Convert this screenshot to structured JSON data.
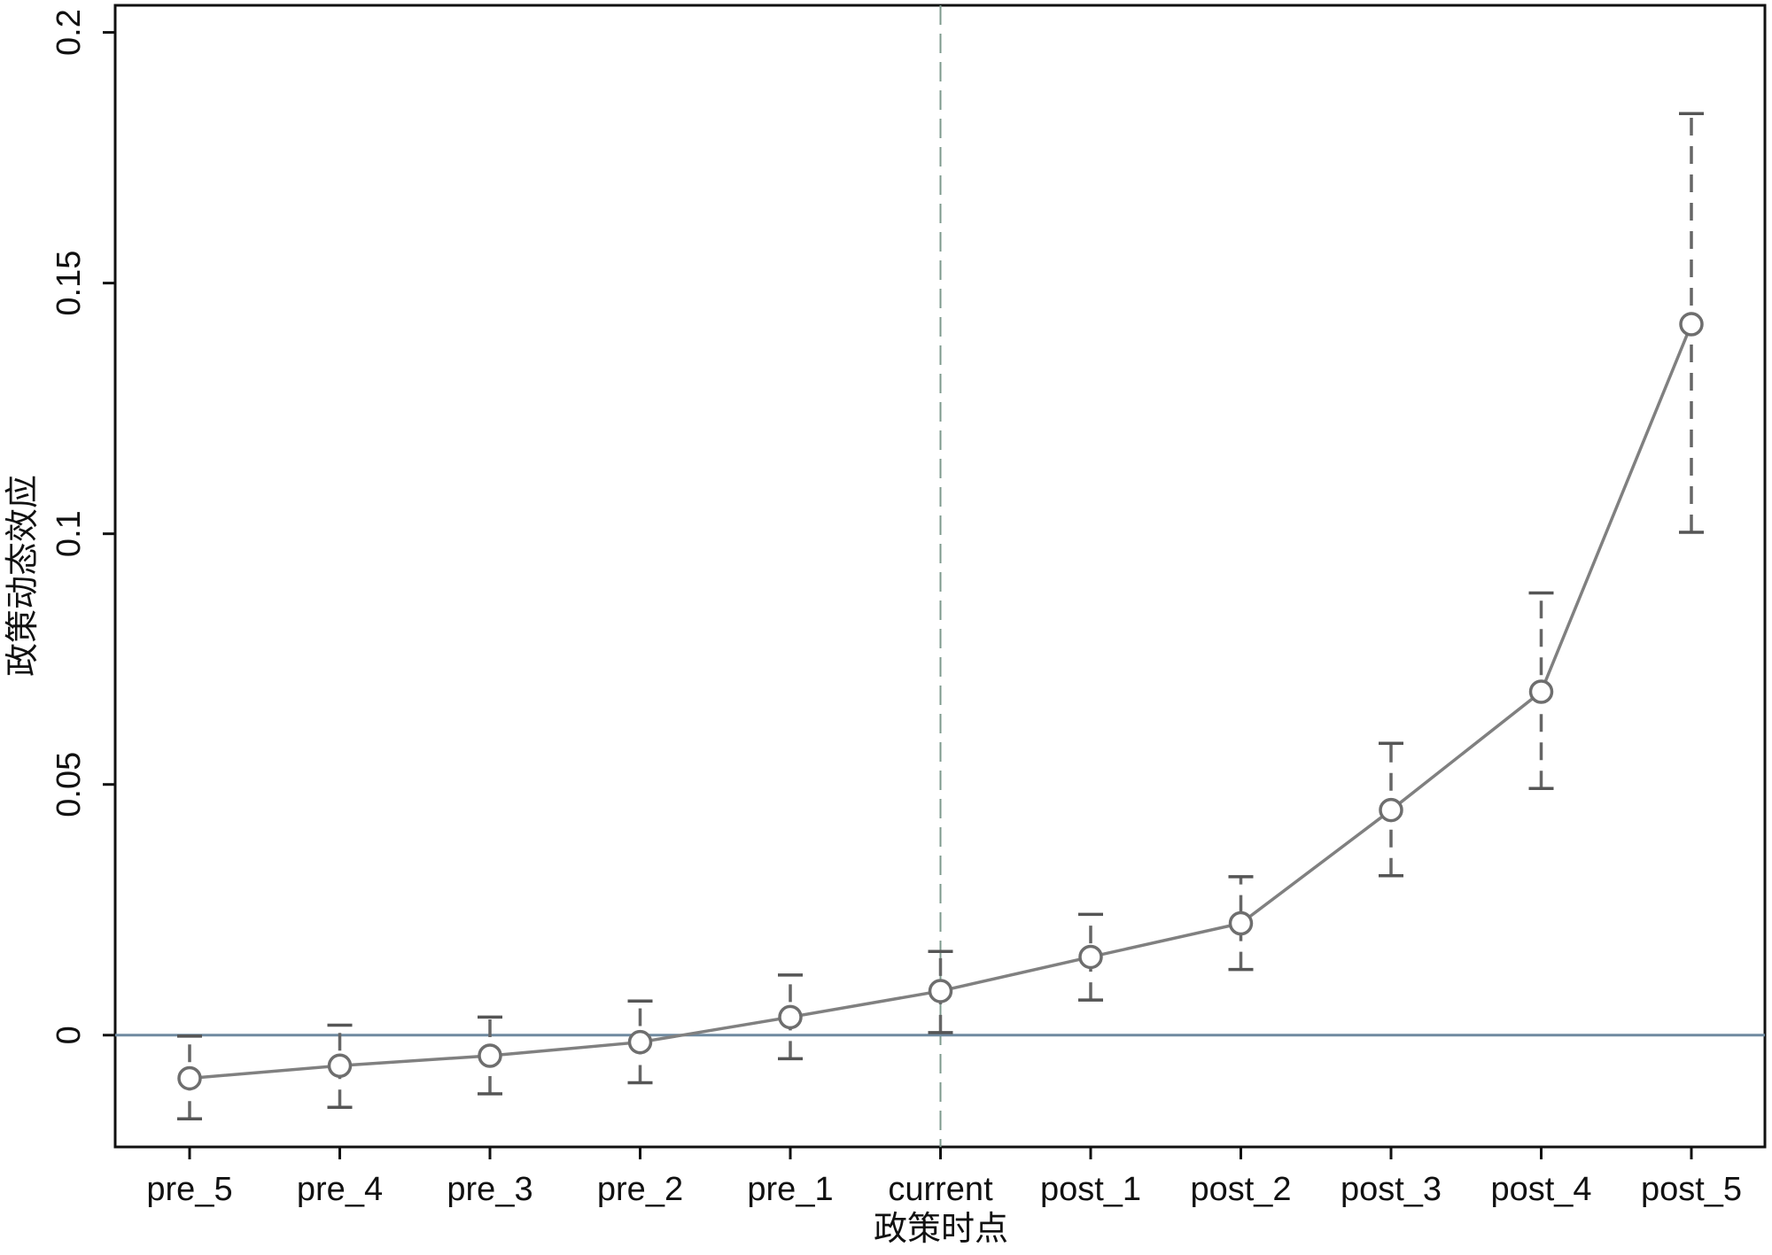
{
  "chart_data": {
    "type": "line",
    "xlabel": "政策时点",
    "ylabel": "政策动态效应",
    "categories": [
      "pre_5",
      "pre_4",
      "pre_3",
      "pre_2",
      "pre_1",
      "current",
      "post_1",
      "post_2",
      "post_3",
      "post_4",
      "post_5"
    ],
    "series": [
      {
        "color": "#808080",
        "values": [
          -0.0086,
          -0.0061,
          -0.0041,
          -0.0014,
          0.0036,
          0.0088,
          0.0156,
          0.0223,
          0.0449,
          0.0685,
          0.1418
        ],
        "ci_lower": [
          -0.0167,
          -0.0144,
          -0.0117,
          -0.0095,
          -0.0047,
          0.0005,
          0.007,
          0.0131,
          0.0318,
          0.0492,
          0.1003
        ],
        "ci_upper": [
          -0.0002,
          0.002,
          0.0036,
          0.0068,
          0.012,
          0.0167,
          0.0241,
          0.0316,
          0.0582,
          0.0882,
          0.1838
        ]
      }
    ],
    "ylim": [
      -0.0223,
      0.2054
    ],
    "yticks": [
      0,
      0.05,
      0.1,
      0.15,
      0.2
    ],
    "reference_lines": {
      "x": "current",
      "y": 0
    }
  }
}
